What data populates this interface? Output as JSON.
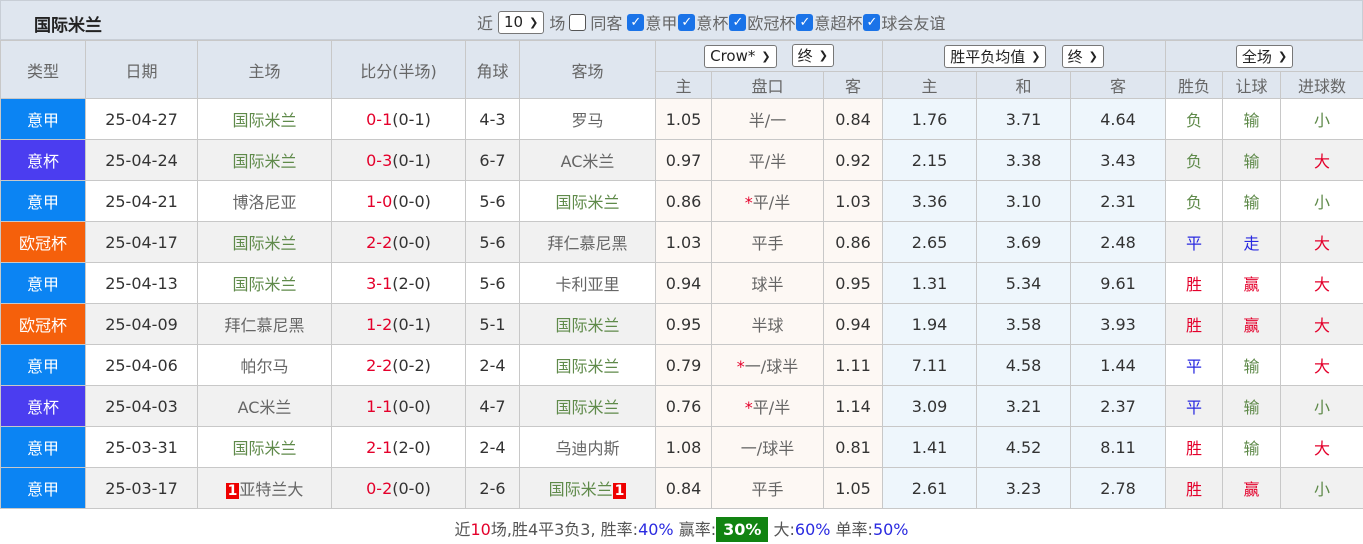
{
  "header": {
    "title": "国际米兰",
    "near_label": "近",
    "count_select": "10",
    "games_label": "场",
    "same_away_label": "同客",
    "same_away_checked": false,
    "competitions": [
      {
        "label": "意甲",
        "checked": true
      },
      {
        "label": "意杯",
        "checked": true
      },
      {
        "label": "欧冠杯",
        "checked": true
      },
      {
        "label": "意超杯",
        "checked": true
      },
      {
        "label": "球会友谊",
        "checked": true
      }
    ]
  },
  "columns": {
    "type": "类型",
    "date": "日期",
    "home": "主场",
    "score": "比分(半场)",
    "corner": "角球",
    "away": "客场",
    "ah_company": "Crow*",
    "ah_time": "终",
    "eu_company": "胜平负均值",
    "eu_time": "终",
    "scope": "全场",
    "ah_home": "主",
    "ah_line": "盘口",
    "ah_away": "客",
    "eu_home": "主",
    "eu_draw": "和",
    "eu_away": "客",
    "res": "胜负",
    "hcp": "让球",
    "ou": "进球数"
  },
  "colors": {
    "意甲": "#0b84f3",
    "意杯": "#4b3df0",
    "欧冠杯": "#f5600b"
  },
  "rows": [
    {
      "type": "意甲",
      "date": "25-04-27",
      "home": "国际米兰",
      "away": "罗马",
      "inter": "home",
      "ft": "0-1",
      "ht": "(0-1)",
      "corner": "4-3",
      "ah": [
        "1.05",
        "半/一",
        "0.84"
      ],
      "star": false,
      "eu": [
        "1.76",
        "3.71",
        "4.64"
      ],
      "res": "负",
      "hcp": "输",
      "ou": "小"
    },
    {
      "type": "意杯",
      "date": "25-04-24",
      "home": "国际米兰",
      "away": "AC米兰",
      "inter": "home",
      "ft": "0-3",
      "ht": "(0-1)",
      "corner": "6-7",
      "ah": [
        "0.97",
        "平/半",
        "0.92"
      ],
      "star": false,
      "eu": [
        "2.15",
        "3.38",
        "3.43"
      ],
      "res": "负",
      "hcp": "输",
      "ou": "大"
    },
    {
      "type": "意甲",
      "date": "25-04-21",
      "home": "博洛尼亚",
      "away": "国际米兰",
      "inter": "away",
      "ft": "1-0",
      "ht": "(0-0)",
      "corner": "5-6",
      "ah": [
        "0.86",
        "平/半",
        "1.03"
      ],
      "star": true,
      "eu": [
        "3.36",
        "3.10",
        "2.31"
      ],
      "res": "负",
      "hcp": "输",
      "ou": "小"
    },
    {
      "type": "欧冠杯",
      "date": "25-04-17",
      "home": "国际米兰",
      "away": "拜仁慕尼黑",
      "inter": "home",
      "ft": "2-2",
      "ht": "(0-0)",
      "corner": "5-6",
      "ah": [
        "1.03",
        "平手",
        "0.86"
      ],
      "star": false,
      "eu": [
        "2.65",
        "3.69",
        "2.48"
      ],
      "res": "平",
      "hcp": "走",
      "ou": "大"
    },
    {
      "type": "意甲",
      "date": "25-04-13",
      "home": "国际米兰",
      "away": "卡利亚里",
      "inter": "home",
      "ft": "3-1",
      "ht": "(2-0)",
      "corner": "5-6",
      "ah": [
        "0.94",
        "球半",
        "0.95"
      ],
      "star": false,
      "eu": [
        "1.31",
        "5.34",
        "9.61"
      ],
      "res": "胜",
      "hcp": "赢",
      "ou": "大"
    },
    {
      "type": "欧冠杯",
      "date": "25-04-09",
      "home": "拜仁慕尼黑",
      "away": "国际米兰",
      "inter": "away",
      "ft": "1-2",
      "ht": "(0-1)",
      "corner": "5-1",
      "ah": [
        "0.95",
        "半球",
        "0.94"
      ],
      "star": false,
      "eu": [
        "1.94",
        "3.58",
        "3.93"
      ],
      "res": "胜",
      "hcp": "赢",
      "ou": "大"
    },
    {
      "type": "意甲",
      "date": "25-04-06",
      "home": "帕尔马",
      "away": "国际米兰",
      "inter": "away",
      "ft": "2-2",
      "ht": "(0-2)",
      "corner": "2-4",
      "ah": [
        "0.79",
        "一/球半",
        "1.11"
      ],
      "star": true,
      "eu": [
        "7.11",
        "4.58",
        "1.44"
      ],
      "res": "平",
      "hcp": "输",
      "ou": "大"
    },
    {
      "type": "意杯",
      "date": "25-04-03",
      "home": "AC米兰",
      "away": "国际米兰",
      "inter": "away",
      "ft": "1-1",
      "ht": "(0-0)",
      "corner": "4-7",
      "ah": [
        "0.76",
        "平/半",
        "1.14"
      ],
      "star": true,
      "eu": [
        "3.09",
        "3.21",
        "2.37"
      ],
      "res": "平",
      "hcp": "输",
      "ou": "小"
    },
    {
      "type": "意甲",
      "date": "25-03-31",
      "home": "国际米兰",
      "away": "乌迪内斯",
      "inter": "home",
      "ft": "2-1",
      "ht": "(2-0)",
      "corner": "2-4",
      "ah": [
        "1.08",
        "一/球半",
        "0.81"
      ],
      "star": false,
      "eu": [
        "1.41",
        "4.52",
        "8.11"
      ],
      "res": "胜",
      "hcp": "输",
      "ou": "大"
    },
    {
      "type": "意甲",
      "date": "25-03-17",
      "home": "亚特兰大",
      "away": "国际米兰",
      "inter": "away",
      "ft": "0-2",
      "ht": "(0-0)",
      "corner": "2-6",
      "ah": [
        "0.84",
        "平手",
        "1.05"
      ],
      "star": false,
      "eu": [
        "2.61",
        "3.23",
        "2.78"
      ],
      "res": "胜",
      "hcp": "赢",
      "ou": "小",
      "home_red": "1",
      "away_red": "1"
    }
  ],
  "footer": {
    "t1": "近",
    "n": "10",
    "t2": "场,胜4平3负3, 胜率:",
    "win": "40%",
    "t3": " 赢率:",
    "cover": "30%",
    "t4": " 大:",
    "over": "60%",
    "t5": " 单率:",
    "odd": "50%"
  }
}
